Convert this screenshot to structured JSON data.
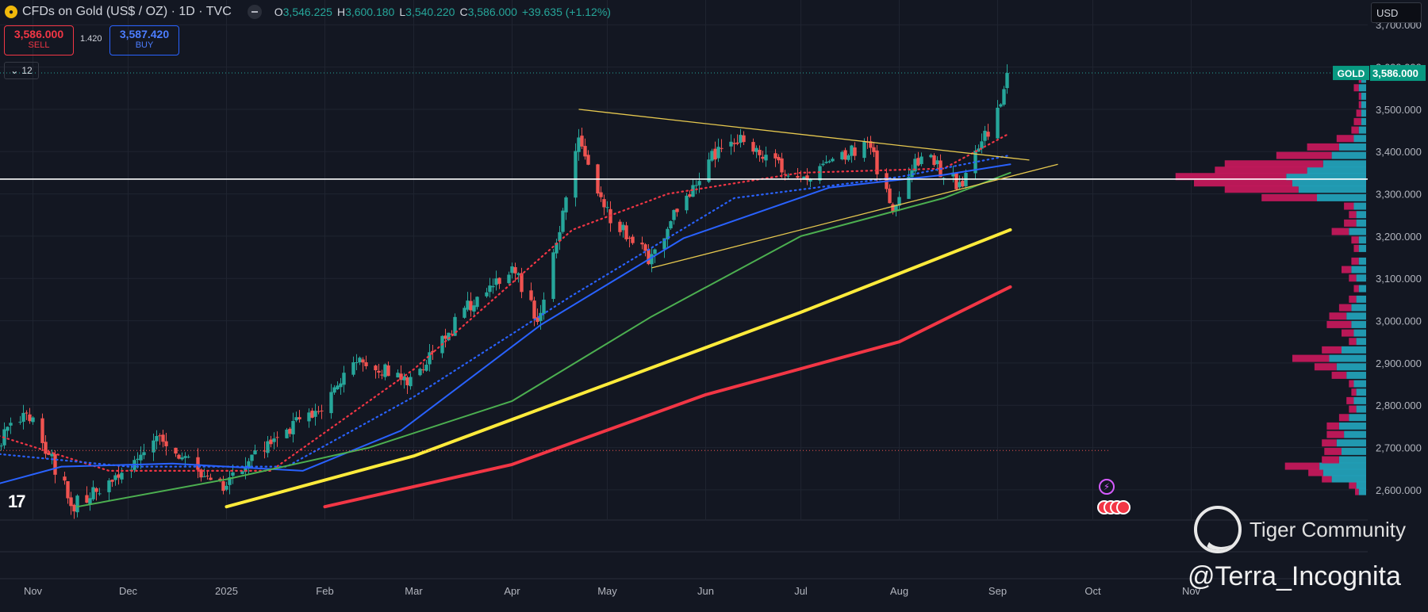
{
  "header": {
    "title": "CFDs on Gold (US$ / OZ) · 1D · TVC",
    "icon": "gold-coin-icon",
    "ohlc": {
      "o_label": "O",
      "o": "3,546.225",
      "h_label": "H",
      "h": "3,600.180",
      "l_label": "L",
      "l": "3,540.220",
      "c_label": "C",
      "c": "3,586.000",
      "change": "+39.635 (+1.12%)"
    }
  },
  "trade": {
    "sell_price": "3,586.000",
    "sell_label": "SELL",
    "spread": "1.420",
    "buy_price": "3,587.420",
    "buy_label": "BUY"
  },
  "indicators_toggle": "12",
  "currency": "USD",
  "watermarks": {
    "community": "Tiger Community",
    "author": "@Terra_Incognita",
    "logo": "TV"
  },
  "colors": {
    "bg": "#131722",
    "up": "#26a69a",
    "down": "#ef5350",
    "ema_fast": "#f23645",
    "ema_mid": "#2962ff",
    "ma50": "#2962ff",
    "ma100": "#4caf50",
    "ma200": "#ffeb3b",
    "ma300": "#f23645",
    "triangle": "#e6c84f",
    "hline": "#ffffff",
    "vp_up": "#22a0b8",
    "vp_down": "#c2185b"
  },
  "chart_data": {
    "type": "candlestick",
    "symbol": "GOLD",
    "last_price": "3,586.000",
    "last_price_value": 3586,
    "y_ticks": [
      "2,600.000",
      "2,700.000",
      "2,800.000",
      "2,900.000",
      "3,000.000",
      "3,100.000",
      "3,200.000",
      "3,300.000",
      "3,400.000",
      "3,500.000",
      "3,600.000",
      "3,700.000"
    ],
    "y_tick_values": [
      2600,
      2700,
      2800,
      2900,
      3000,
      3100,
      3200,
      3300,
      3400,
      3500,
      3600,
      3700
    ],
    "x_ticks": [
      "Nov",
      "Dec",
      "2025",
      "Feb",
      "Mar",
      "Apr",
      "May",
      "Jun",
      "Jul",
      "Aug",
      "Sep",
      "Oct",
      "Nov"
    ],
    "x_tick_dates": [
      "2024-11-01",
      "2024-12-01",
      "2025-01-01",
      "2025-02-01",
      "2025-03-01",
      "2025-04-01",
      "2025-05-01",
      "2025-06-01",
      "2025-07-01",
      "2025-08-01",
      "2025-09-01",
      "2025-10-01",
      "2025-11-01"
    ],
    "close_path": [
      [
        "2024-10-14",
        2652
      ],
      [
        "2024-10-30",
        2785
      ],
      [
        "2024-11-14",
        2565
      ],
      [
        "2024-11-25",
        2625
      ],
      [
        "2024-12-11",
        2718
      ],
      [
        "2024-12-30",
        2606
      ],
      [
        "2025-01-10",
        2690
      ],
      [
        "2025-01-31",
        2800
      ],
      [
        "2025-02-11",
        2905
      ],
      [
        "2025-02-28",
        2858
      ],
      [
        "2025-03-18",
        3035
      ],
      [
        "2025-04-02",
        3120
      ],
      [
        "2025-04-09",
        3000
      ],
      [
        "2025-04-22",
        3420
      ],
      [
        "2025-05-02",
        3240
      ],
      [
        "2025-05-14",
        3150
      ],
      [
        "2025-06-02",
        3380
      ],
      [
        "2025-06-13",
        3430
      ],
      [
        "2025-07-01",
        3330
      ],
      [
        "2025-07-22",
        3420
      ],
      [
        "2025-07-30",
        3270
      ],
      [
        "2025-08-08",
        3395
      ],
      [
        "2025-08-20",
        3320
      ],
      [
        "2025-08-29",
        3450
      ],
      [
        "2025-09-03",
        3546
      ],
      [
        "2025-09-04",
        3586
      ]
    ],
    "horizontal_line": 3335,
    "triangle": {
      "upper": [
        [
          "2025-04-22",
          3500
        ],
        [
          "2025-09-11",
          3380
        ]
      ],
      "lower": [
        [
          "2025-05-15",
          3125
        ],
        [
          "2025-09-20",
          3370
        ]
      ]
    },
    "moving_averages": [
      {
        "style": "dotted",
        "color": "#f23645",
        "points": [
          [
            "2024-10-14",
            2745
          ],
          [
            "2024-11-25",
            2645
          ],
          [
            "2025-01-15",
            2645
          ],
          [
            "2025-03-01",
            2885
          ],
          [
            "2025-04-20",
            3215
          ],
          [
            "2025-05-20",
            3300
          ],
          [
            "2025-07-01",
            3350
          ],
          [
            "2025-08-15",
            3360
          ],
          [
            "2025-09-04",
            3440
          ]
        ]
      },
      {
        "style": "dotted",
        "color": "#2962ff",
        "points": [
          [
            "2024-10-14",
            2690
          ],
          [
            "2024-12-01",
            2655
          ],
          [
            "2025-01-20",
            2655
          ],
          [
            "2025-03-01",
            2820
          ],
          [
            "2025-04-20",
            3060
          ],
          [
            "2025-06-10",
            3290
          ],
          [
            "2025-08-01",
            3340
          ],
          [
            "2025-09-04",
            3390
          ]
        ]
      },
      {
        "style": "solid",
        "color": "#2962ff",
        "points": [
          [
            "2024-10-14",
            2600
          ],
          [
            "2024-11-10",
            2655
          ],
          [
            "2024-12-15",
            2662
          ],
          [
            "2025-01-25",
            2645
          ],
          [
            "2025-02-25",
            2740
          ],
          [
            "2025-04-10",
            2990
          ],
          [
            "2025-05-25",
            3195
          ],
          [
            "2025-07-10",
            3315
          ],
          [
            "2025-08-15",
            3345
          ],
          [
            "2025-09-05",
            3370
          ]
        ]
      },
      {
        "style": "solid",
        "color": "#4caf50",
        "points": [
          [
            "2024-11-15",
            2560
          ],
          [
            "2025-01-01",
            2625
          ],
          [
            "2025-02-15",
            2700
          ],
          [
            "2025-04-01",
            2810
          ],
          [
            "2025-05-15",
            3010
          ],
          [
            "2025-07-01",
            3200
          ],
          [
            "2025-08-15",
            3290
          ],
          [
            "2025-09-05",
            3350
          ]
        ]
      },
      {
        "style": "solid",
        "color": "#ffeb3b",
        "points": [
          [
            "2025-01-01",
            2560
          ],
          [
            "2025-03-01",
            2680
          ],
          [
            "2025-05-01",
            2850
          ],
          [
            "2025-07-01",
            3020
          ],
          [
            "2025-09-05",
            3215
          ]
        ]
      },
      {
        "style": "solid",
        "color": "#f23645",
        "points": [
          [
            "2025-02-01",
            2560
          ],
          [
            "2025-04-01",
            2660
          ],
          [
            "2025-06-01",
            2825
          ],
          [
            "2025-08-01",
            2950
          ],
          [
            "2025-09-05",
            3080
          ]
        ]
      }
    ],
    "volume_profile": [
      [
        2595,
        6,
        3
      ],
      [
        2610,
        8,
        6
      ],
      [
        2625,
        28,
        8
      ],
      [
        2640,
        35,
        12
      ],
      [
        2655,
        38,
        28
      ],
      [
        2670,
        22,
        14
      ],
      [
        2690,
        20,
        14
      ],
      [
        2710,
        24,
        12
      ],
      [
        2730,
        18,
        14
      ],
      [
        2750,
        22,
        10
      ],
      [
        2770,
        14,
        8
      ],
      [
        2790,
        8,
        6
      ],
      [
        2810,
        10,
        6
      ],
      [
        2830,
        8,
        4
      ],
      [
        2850,
        10,
        4
      ],
      [
        2870,
        16,
        12
      ],
      [
        2890,
        24,
        18
      ],
      [
        2910,
        30,
        30
      ],
      [
        2930,
        20,
        16
      ],
      [
        2950,
        8,
        6
      ],
      [
        2970,
        10,
        10
      ],
      [
        2990,
        12,
        20
      ],
      [
        3010,
        16,
        14
      ],
      [
        3030,
        12,
        10
      ],
      [
        3050,
        8,
        6
      ],
      [
        3075,
        6,
        4
      ],
      [
        3100,
        8,
        6
      ],
      [
        3120,
        12,
        8
      ],
      [
        3140,
        6,
        6
      ],
      [
        3170,
        6,
        4
      ],
      [
        3190,
        6,
        6
      ],
      [
        3210,
        14,
        14
      ],
      [
        3230,
        8,
        10
      ],
      [
        3250,
        8,
        6
      ],
      [
        3270,
        10,
        8
      ],
      [
        3290,
        40,
        45
      ],
      [
        3310,
        55,
        60
      ],
      [
        3325,
        60,
        80
      ],
      [
        3340,
        65,
        90
      ],
      [
        3355,
        48,
        75
      ],
      [
        3370,
        35,
        80
      ],
      [
        3390,
        28,
        45
      ],
      [
        3410,
        22,
        26
      ],
      [
        3430,
        10,
        14
      ],
      [
        3450,
        6,
        6
      ],
      [
        3470,
        4,
        6
      ],
      [
        3490,
        4,
        4
      ],
      [
        3510,
        4,
        2
      ],
      [
        3530,
        4,
        2
      ],
      [
        3550,
        6,
        4
      ],
      [
        3570,
        4,
        2
      ]
    ]
  }
}
